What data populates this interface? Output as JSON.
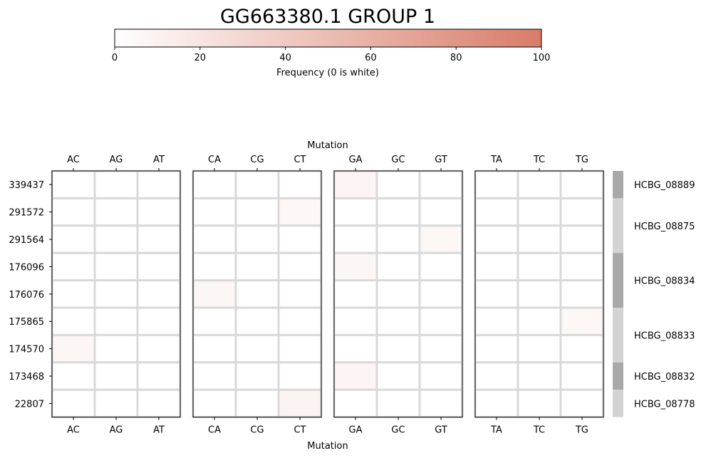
{
  "chart_data": {
    "type": "heatmap",
    "title": "GG663380.1 GROUP 1",
    "colorbar": {
      "label": "Frequency (0 is white)",
      "range": [
        0,
        100
      ],
      "ticks": [
        0,
        20,
        40,
        60,
        80,
        100
      ],
      "low_color": "#ffffff",
      "high_color": "#d87c68"
    },
    "xlabel_top": "Mutation",
    "xlabel_bottom": "Mutation",
    "panels": [
      {
        "columns": [
          "AC",
          "AG",
          "AT"
        ]
      },
      {
        "columns": [
          "CA",
          "CG",
          "CT"
        ]
      },
      {
        "columns": [
          "GA",
          "GC",
          "GT"
        ]
      },
      {
        "columns": [
          "TA",
          "TC",
          "TG"
        ]
      }
    ],
    "rows": [
      "339437",
      "291572",
      "291564",
      "176096",
      "176076",
      "175865",
      "174570",
      "173468",
      "22807"
    ],
    "values": [
      {
        "row": "339437",
        "column": "GA",
        "value": 8
      },
      {
        "row": "291572",
        "column": "CT",
        "value": 6
      },
      {
        "row": "291564",
        "column": "GT",
        "value": 6
      },
      {
        "row": "176096",
        "column": "GA",
        "value": 7
      },
      {
        "row": "176076",
        "column": "CA",
        "value": 7
      },
      {
        "row": "175865",
        "column": "TG",
        "value": 6
      },
      {
        "row": "174570",
        "column": "AC",
        "value": 7
      },
      {
        "row": "173468",
        "column": "GA",
        "value": 8
      },
      {
        "row": "22807",
        "column": "CT",
        "value": 9
      }
    ],
    "gene_groups": [
      {
        "name": "HCBG_08889",
        "rows": 1,
        "color": "#a9a9a9"
      },
      {
        "name": "HCBG_08875",
        "rows": 2,
        "color": "#d3d3d3"
      },
      {
        "name": "HCBG_08834",
        "rows": 2,
        "color": "#a9a9a9"
      },
      {
        "name": "HCBG_08833",
        "rows": 2,
        "color": "#d3d3d3"
      },
      {
        "name": "HCBG_08832",
        "rows": 1,
        "color": "#a9a9a9"
      },
      {
        "name": "HCBG_08778",
        "rows": 1,
        "color": "#d3d3d3"
      }
    ],
    "grid": true,
    "grid_color": "#d9d9d9"
  }
}
